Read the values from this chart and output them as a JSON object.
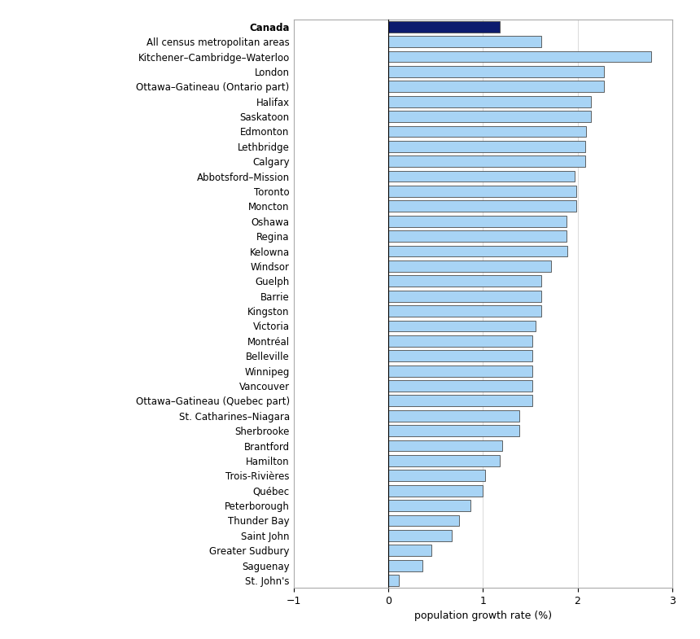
{
  "categories": [
    "Canada",
    "All census metropolitan areas",
    "Kitchener–Cambridge–Waterloo",
    "London",
    "Ottawa–Gatineau (Ontario part)",
    "Halifax",
    "Saskatoon",
    "Edmonton",
    "Lethbridge",
    "Calgary",
    "Abbotsford–Mission",
    "Toronto",
    "Moncton",
    "Oshawa",
    "Regina",
    "Kelowna",
    "Windsor",
    "Guelph",
    "Barrie",
    "Kingston",
    "Victoria",
    "Montréal",
    "Belleville",
    "Winnipeg",
    "Vancouver",
    "Ottawa–Gatineau (Quebec part)",
    "St. Catharines–Niagara",
    "Sherbrooke",
    "Brantford",
    "Hamilton",
    "Trois-Rivières",
    "Québec",
    "Peterborough",
    "Thunder Bay",
    "Saint John",
    "Greater Sudbury",
    "Saguenay",
    "St. John's"
  ],
  "values": [
    1.18,
    1.62,
    2.78,
    2.28,
    2.28,
    2.14,
    2.14,
    2.09,
    2.08,
    2.08,
    1.97,
    1.99,
    1.99,
    1.88,
    1.88,
    1.89,
    1.72,
    1.62,
    1.62,
    1.62,
    1.56,
    1.52,
    1.52,
    1.52,
    1.52,
    1.52,
    1.38,
    1.38,
    1.2,
    1.18,
    1.02,
    1.0,
    0.87,
    0.75,
    0.67,
    0.45,
    0.36,
    0.11
  ],
  "bar_color_canada": "#0d1b6e",
  "bar_color_others": "#a8d4f5",
  "bar_edge_color": "#4a4a4a",
  "bg_color": "#ffffff",
  "plot_bg_color": "#ffffff",
  "xlabel": "population growth rate (%)",
  "xlim": [
    -1,
    3
  ],
  "xticks": [
    -1,
    0,
    1,
    2,
    3
  ],
  "label_fontsize": 8.5,
  "tick_fontsize": 9
}
